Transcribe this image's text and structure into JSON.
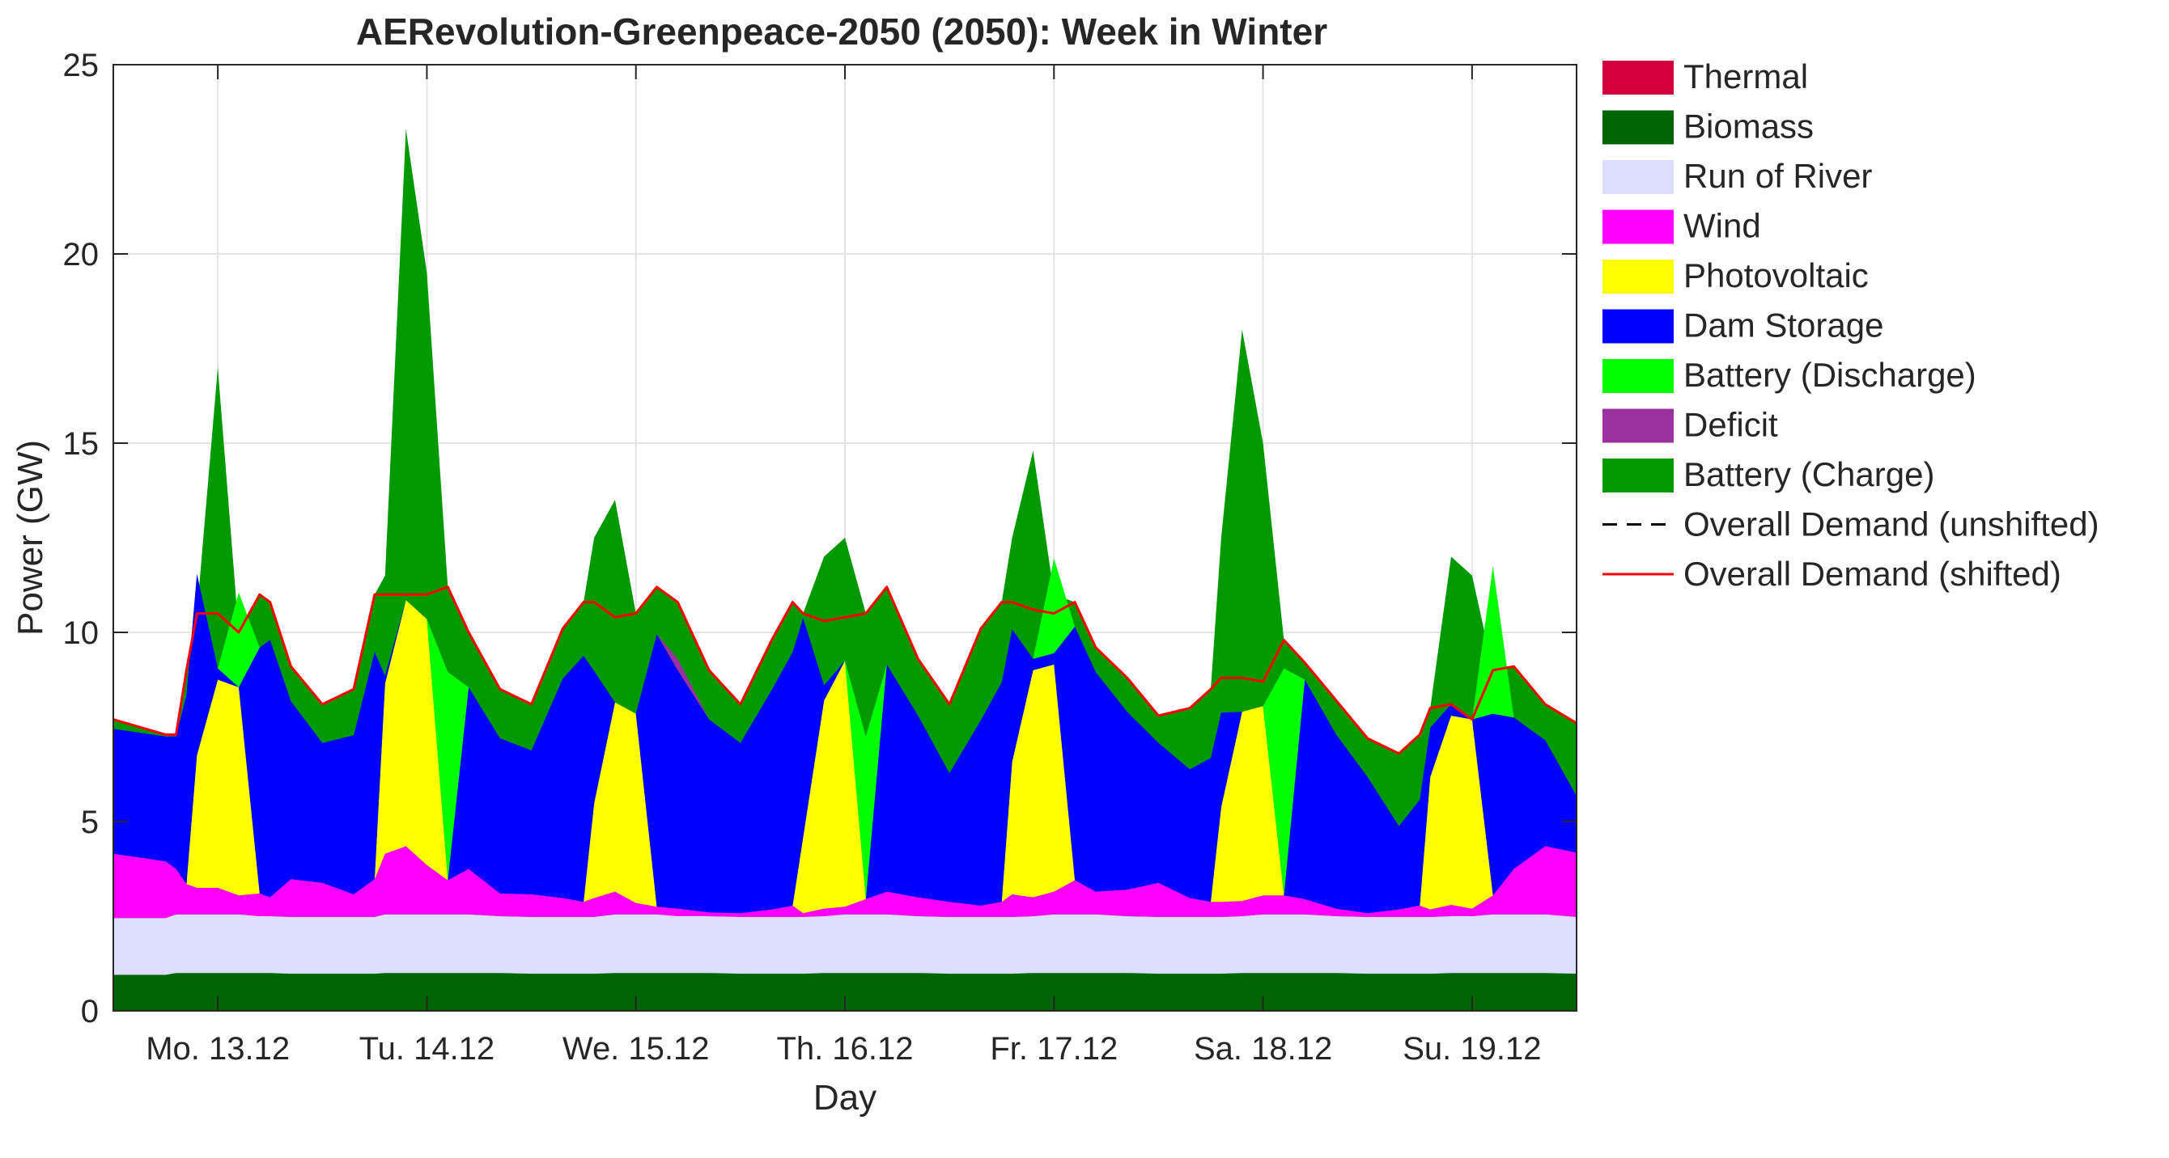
{
  "chart_data": {
    "type": "area",
    "title": "AERevolution-Greenpeace-2050 (2050): Week in Winter",
    "xlabel": "Day",
    "ylabel": "Power (GW)",
    "ylim": [
      0,
      25
    ],
    "xlim": [
      0,
      7
    ],
    "grid": true,
    "legend_position": "right-outside",
    "y_ticks": [
      {
        "label": "0",
        "value": 0
      },
      {
        "label": "5",
        "value": 5
      },
      {
        "label": "10",
        "value": 10
      },
      {
        "label": "15",
        "value": 15
      },
      {
        "label": "20",
        "value": 20
      },
      {
        "label": "25",
        "value": 25
      }
    ],
    "x_ticks": [
      {
        "label": "Mo. 13.12",
        "value": 0.5
      },
      {
        "label": "Tu. 14.12",
        "value": 1.5
      },
      {
        "label": "We. 15.12",
        "value": 2.5
      },
      {
        "label": "Th. 16.12",
        "value": 3.5
      },
      {
        "label": "Fr. 17.12",
        "value": 4.5
      },
      {
        "label": "Sa. 18.12",
        "value": 5.5
      },
      {
        "label": "Su. 19.12",
        "value": 6.5
      }
    ],
    "x": [
      0,
      0.25,
      0.3,
      0.35,
      0.4,
      0.5,
      0.6,
      0.7,
      0.75,
      0.85,
      1.0,
      1.15,
      1.25,
      1.3,
      1.4,
      1.5,
      1.6,
      1.7,
      1.85,
      2.0,
      2.15,
      2.25,
      2.3,
      2.4,
      2.5,
      2.6,
      2.7,
      2.85,
      3.0,
      3.15,
      3.25,
      3.3,
      3.4,
      3.5,
      3.6,
      3.7,
      3.85,
      4.0,
      4.15,
      4.25,
      4.3,
      4.4,
      4.5,
      4.6,
      4.7,
      4.85,
      5.0,
      5.15,
      5.25,
      5.3,
      5.4,
      5.5,
      5.6,
      5.7,
      5.85,
      6.0,
      6.15,
      6.25,
      6.3,
      6.4,
      6.5,
      6.6,
      6.7,
      6.85,
      7.0
    ],
    "series": [
      {
        "name": "Biomass",
        "color": "#006400",
        "values": [
          0.95,
          0.95,
          1.0,
          1.0,
          1.0,
          1.0,
          1.0,
          1.0,
          1.0,
          0.98,
          0.98,
          0.98,
          0.98,
          1.0,
          1.0,
          1.0,
          1.0,
          1.0,
          1.0,
          0.98,
          0.98,
          0.98,
          0.98,
          1.0,
          1.0,
          1.0,
          1.0,
          1.0,
          0.98,
          0.98,
          0.98,
          0.98,
          1.0,
          1.0,
          1.0,
          1.0,
          1.0,
          0.98,
          0.98,
          0.98,
          0.98,
          1.0,
          1.0,
          1.0,
          1.0,
          1.0,
          0.98,
          0.98,
          0.98,
          0.98,
          1.0,
          1.0,
          1.0,
          1.0,
          1.0,
          0.98,
          0.98,
          0.98,
          0.98,
          1.0,
          1.0,
          1.0,
          1.0,
          1.0,
          0.98
        ]
      },
      {
        "name": "Run of River",
        "color": "#DDDDFF",
        "values": [
          1.5,
          1.5,
          1.55,
          1.55,
          1.55,
          1.55,
          1.55,
          1.5,
          1.5,
          1.5,
          1.5,
          1.5,
          1.5,
          1.55,
          1.55,
          1.55,
          1.55,
          1.55,
          1.5,
          1.5,
          1.5,
          1.5,
          1.5,
          1.55,
          1.55,
          1.55,
          1.5,
          1.5,
          1.5,
          1.5,
          1.5,
          1.5,
          1.5,
          1.55,
          1.55,
          1.55,
          1.5,
          1.5,
          1.5,
          1.5,
          1.5,
          1.5,
          1.55,
          1.55,
          1.55,
          1.5,
          1.5,
          1.5,
          1.5,
          1.5,
          1.5,
          1.55,
          1.55,
          1.55,
          1.5,
          1.5,
          1.5,
          1.5,
          1.5,
          1.5,
          1.5,
          1.55,
          1.55,
          1.55,
          1.5
        ]
      },
      {
        "name": "Wind",
        "color": "#FF00FF",
        "values": [
          1.7,
          1.5,
          1.2,
          0.8,
          0.7,
          0.7,
          0.5,
          0.6,
          0.5,
          1.0,
          0.9,
          0.6,
          1.0,
          1.6,
          1.8,
          1.3,
          0.9,
          1.2,
          0.6,
          0.6,
          0.5,
          0.4,
          0.5,
          0.6,
          0.3,
          0.2,
          0.2,
          0.1,
          0.1,
          0.2,
          0.3,
          0.1,
          0.2,
          0.2,
          0.4,
          0.6,
          0.5,
          0.4,
          0.3,
          0.4,
          0.6,
          0.5,
          0.6,
          0.9,
          0.6,
          0.7,
          0.9,
          0.5,
          0.4,
          0.4,
          0.4,
          0.5,
          0.5,
          0.4,
          0.2,
          0.1,
          0.2,
          0.3,
          0.2,
          0.3,
          0.2,
          0.5,
          1.2,
          1.8,
          1.7
        ]
      },
      {
        "name": "Photovoltaic",
        "color": "#FFFF00",
        "values": [
          0,
          0,
          0,
          0,
          3.5,
          5.5,
          5.5,
          0,
          0,
          0,
          0,
          0,
          0,
          4.5,
          6.5,
          6.5,
          0,
          0,
          0,
          0,
          0,
          0,
          2.5,
          5.0,
          5.0,
          0,
          0,
          0,
          0,
          0,
          0,
          2.0,
          5.5,
          6.5,
          0,
          0,
          0,
          0,
          0,
          0,
          3.5,
          6.0,
          6.0,
          0,
          0,
          0,
          0,
          0,
          0,
          2.5,
          5.0,
          5.0,
          0,
          0,
          0,
          0,
          0,
          0,
          3.5,
          5.0,
          5.0,
          0,
          0,
          0,
          0
        ]
      },
      {
        "name": "Dam Storage",
        "color": "#0000FF",
        "values": [
          3.3,
          3.3,
          3.5,
          5.0,
          4.8,
          0.3,
          0,
          6.5,
          6.8,
          4.7,
          3.7,
          4.2,
          6.0,
          0.2,
          0,
          0,
          0,
          4.8,
          4.1,
          3.8,
          5.8,
          6.5,
          3.5,
          0,
          0,
          7.2,
          6.3,
          5.1,
          4.5,
          5.8,
          6.7,
          5.8,
          0.4,
          0,
          0,
          6.0,
          4.8,
          3.4,
          4.9,
          5.8,
          3.5,
          0.3,
          0.3,
          6.7,
          5.8,
          4.7,
          3.7,
          3.4,
          3.8,
          2.5,
          0,
          0,
          0,
          5.8,
          4.6,
          3.6,
          2.2,
          2.8,
          1.3,
          0.3,
          0,
          4.8,
          4.0,
          2.8,
          1.5
        ]
      },
      {
        "name": "Battery (Discharge)",
        "color": "#00FF00",
        "values": [
          0,
          0,
          0,
          0,
          0,
          0,
          2.5,
          0,
          0,
          0,
          0,
          0,
          0,
          0,
          0,
          0,
          5.5,
          0,
          0,
          0,
          0,
          0,
          0,
          0,
          0,
          0,
          0,
          0,
          0,
          0,
          0,
          0,
          0,
          0,
          4.3,
          0,
          0,
          0,
          0,
          0,
          0,
          0,
          2.5,
          0,
          0,
          0,
          0,
          0,
          0,
          0,
          0,
          0,
          6.0,
          0,
          0,
          0,
          0,
          0,
          0,
          0,
          0,
          3.9,
          0,
          0,
          0
        ]
      },
      {
        "name": "Thermal",
        "color": "#D2003C",
        "values": [
          0,
          0,
          0,
          0,
          0,
          0,
          0,
          0,
          0,
          0,
          0,
          0,
          0,
          0,
          0,
          0,
          0,
          0,
          0,
          0,
          0,
          0,
          0,
          0,
          0,
          0,
          0,
          0,
          0,
          0,
          0,
          0,
          0,
          0,
          0,
          0,
          0,
          0,
          0,
          0,
          0,
          0,
          0,
          0,
          0,
          0,
          0,
          0,
          0,
          0,
          0,
          0,
          0,
          0,
          0,
          0,
          0,
          0,
          0,
          0,
          0,
          0,
          0,
          0,
          0
        ]
      },
      {
        "name": "Deficit",
        "color": "#9B30A0",
        "values": [
          0,
          0,
          0,
          0,
          0,
          0,
          0,
          0,
          0,
          0,
          0,
          0,
          0,
          0,
          0,
          0,
          0,
          0,
          0,
          0,
          0,
          0,
          0,
          0,
          0,
          0,
          0.3,
          0,
          0,
          0,
          0,
          0,
          0,
          0,
          0,
          0,
          0,
          0,
          0,
          0,
          0,
          0,
          0,
          0,
          0,
          0,
          0,
          0,
          0,
          0,
          0,
          0,
          0,
          0,
          0,
          0,
          0,
          0,
          0,
          0,
          0,
          0,
          0,
          0,
          0
        ]
      }
    ],
    "battery_charge": {
      "name": "Battery (Charge)",
      "color": "#009900",
      "top": [
        7.7,
        7.3,
        7.3,
        9.0,
        10.5,
        17.0,
        10.0,
        11.0,
        10.8,
        9.1,
        8.1,
        8.5,
        11.0,
        11.5,
        23.3,
        19.5,
        11.2,
        10.0,
        8.5,
        8.1,
        10.1,
        10.8,
        12.5,
        13.5,
        10.5,
        11.2,
        10.8,
        9.0,
        8.1,
        9.8,
        10.8,
        10.5,
        12.0,
        12.5,
        10.5,
        11.2,
        9.3,
        8.1,
        10.1,
        10.8,
        12.5,
        14.8,
        11.0,
        10.8,
        9.6,
        8.8,
        7.8,
        8.0,
        8.5,
        12.5,
        18.0,
        15.0,
        9.8,
        9.2,
        8.2,
        7.2,
        6.8,
        7.3,
        8.0,
        12.0,
        11.5,
        9.0,
        9.1,
        8.1,
        7.6
      ]
    },
    "demand_shifted": {
      "name": "Overall Demand (shifted)",
      "color": "#FF0000",
      "values": [
        7.7,
        7.3,
        7.3,
        9.0,
        10.5,
        10.5,
        10.0,
        11.0,
        10.8,
        9.1,
        8.1,
        8.5,
        11.0,
        11.0,
        11.0,
        11.0,
        11.2,
        10.0,
        8.5,
        8.1,
        10.1,
        10.8,
        10.8,
        10.4,
        10.5,
        11.2,
        10.8,
        9.0,
        8.1,
        9.8,
        10.8,
        10.5,
        10.3,
        10.4,
        10.5,
        11.2,
        9.3,
        8.1,
        10.1,
        10.8,
        10.8,
        10.6,
        10.5,
        10.8,
        9.6,
        8.8,
        7.8,
        8.0,
        8.5,
        8.8,
        8.8,
        8.7,
        9.8,
        9.2,
        8.2,
        7.2,
        6.8,
        7.3,
        8.0,
        8.1,
        7.7,
        9.0,
        9.1,
        8.1,
        7.6
      ]
    },
    "demand_unshifted": {
      "name": "Overall Demand (unshifted)",
      "color": "#000000"
    },
    "legend": [
      {
        "name": "Thermal",
        "type": "patch",
        "color": "#D2003C"
      },
      {
        "name": "Biomass",
        "type": "patch",
        "color": "#006400"
      },
      {
        "name": "Run of River",
        "type": "patch",
        "color": "#DDDDFF"
      },
      {
        "name": "Wind",
        "type": "patch",
        "color": "#FF00FF"
      },
      {
        "name": "Photovoltaic",
        "type": "patch",
        "color": "#FFFF00"
      },
      {
        "name": "Dam Storage",
        "type": "patch",
        "color": "#0000FF"
      },
      {
        "name": "Battery (Discharge)",
        "type": "patch",
        "color": "#00FF00"
      },
      {
        "name": "Deficit",
        "type": "patch",
        "color": "#9B30A0"
      },
      {
        "name": "Battery (Charge)",
        "type": "patch",
        "color": "#009900"
      },
      {
        "name": "Overall Demand (unshifted)",
        "type": "dashed",
        "color": "#000000"
      },
      {
        "name": "Overall Demand (shifted)",
        "type": "line",
        "color": "#FF0000"
      }
    ]
  }
}
